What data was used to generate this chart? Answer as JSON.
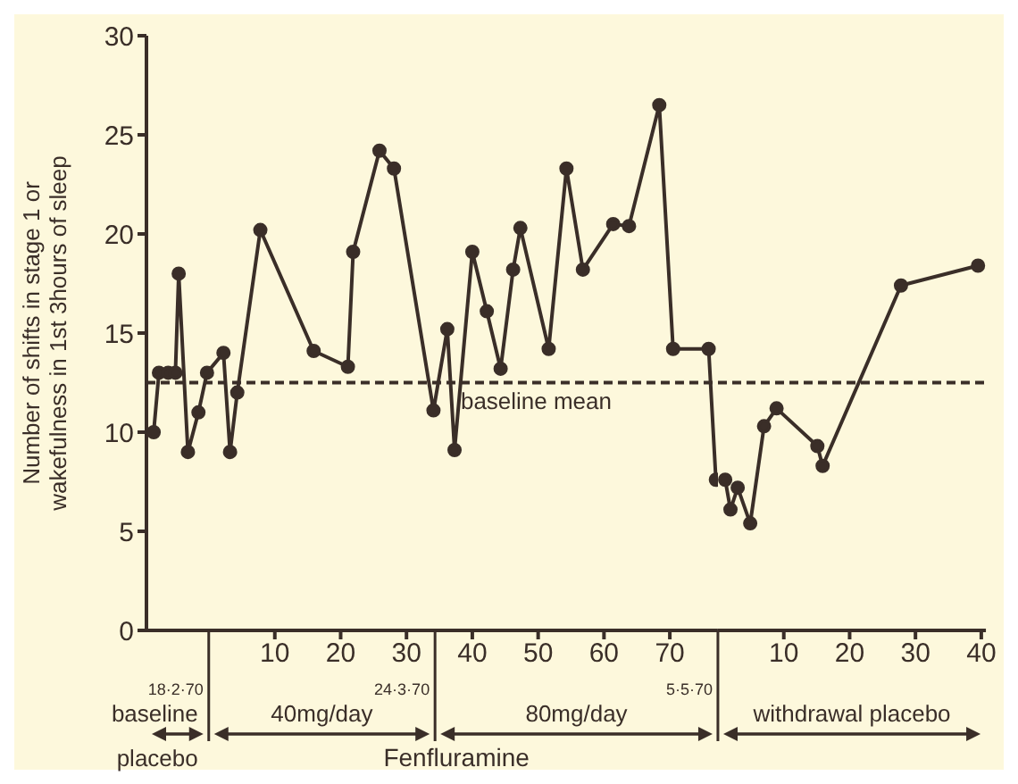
{
  "chart_data": [
    {
      "type": "line",
      "ylabel": "Number of shifts in stage 1 or wakefulness in 1st 3hours of sleep",
      "x": [
        -8.4,
        -7.6,
        -6.2,
        -5.1,
        -4.6,
        -3.2,
        -1.6,
        -0.3,
        2.2,
        3.2,
        4.3,
        7.8,
        15.9,
        21.1,
        21.9,
        25.9,
        28.1,
        34.1,
        36.2,
        37.3,
        40,
        42.2,
        44.3,
        46.2,
        47.3,
        51.6,
        54.3,
        56.8,
        61.4,
        63.8,
        68.4,
        70.5,
        75.9,
        77
      ],
      "series": [
        {
          "color": "#3a2e28",
          "values": [
            10,
            13,
            13,
            13,
            18,
            9,
            11,
            13,
            14,
            9,
            12,
            20.2,
            14.1,
            13.3,
            19.1,
            24.2,
            23.3,
            11.1,
            15.2,
            9.1,
            19.1,
            16.1,
            13.2,
            18.2,
            20.3,
            14.2,
            23.3,
            18.2,
            20.5,
            20.4,
            26.5,
            14.2,
            14.2,
            7.6
          ]
        }
      ],
      "xlim": [
        -9.5,
        77.3
      ],
      "xticks": [
        10,
        20,
        30,
        40,
        50,
        60,
        70
      ],
      "ylim": [
        0,
        30
      ],
      "yticks": [
        0,
        5,
        10,
        15,
        20,
        25,
        30
      ],
      "ref_lines": [
        {
          "axis": "y",
          "value": 12.5,
          "label": "baseline mean",
          "line_style": "dashed"
        }
      ],
      "annotations": [
        "18·2·70",
        "24·3·70",
        "5·5·70",
        "baseline placebo",
        "40mg/day",
        "80mg/day",
        "Fenfluramine"
      ],
      "marker": "circle",
      "line_style": "solid"
    },
    {
      "type": "line",
      "x": [
        1.1,
        1.9,
        3,
        4.9,
        7,
        8.9,
        15.1,
        15.9,
        27.8,
        39.5
      ],
      "series": [
        {
          "color": "#3a2e28",
          "values": [
            7.6,
            6.1,
            7.2,
            5.4,
            10.3,
            11.2,
            9.3,
            8.3,
            17.4,
            18.4
          ]
        }
      ],
      "xlim": [
        0,
        40.7
      ],
      "xticks": [
        10,
        20,
        30,
        40
      ],
      "ylim": [
        0,
        30
      ],
      "yticks": [
        0,
        5,
        10,
        15,
        20,
        25,
        30
      ],
      "tick_labels": "x",
      "ref_lines": [
        {
          "axis": "y",
          "value": 12.5,
          "line_style": "dashed"
        }
      ],
      "annotations": [
        "withdrawal placebo"
      ],
      "marker": "circle",
      "line_style": "solid"
    }
  ]
}
